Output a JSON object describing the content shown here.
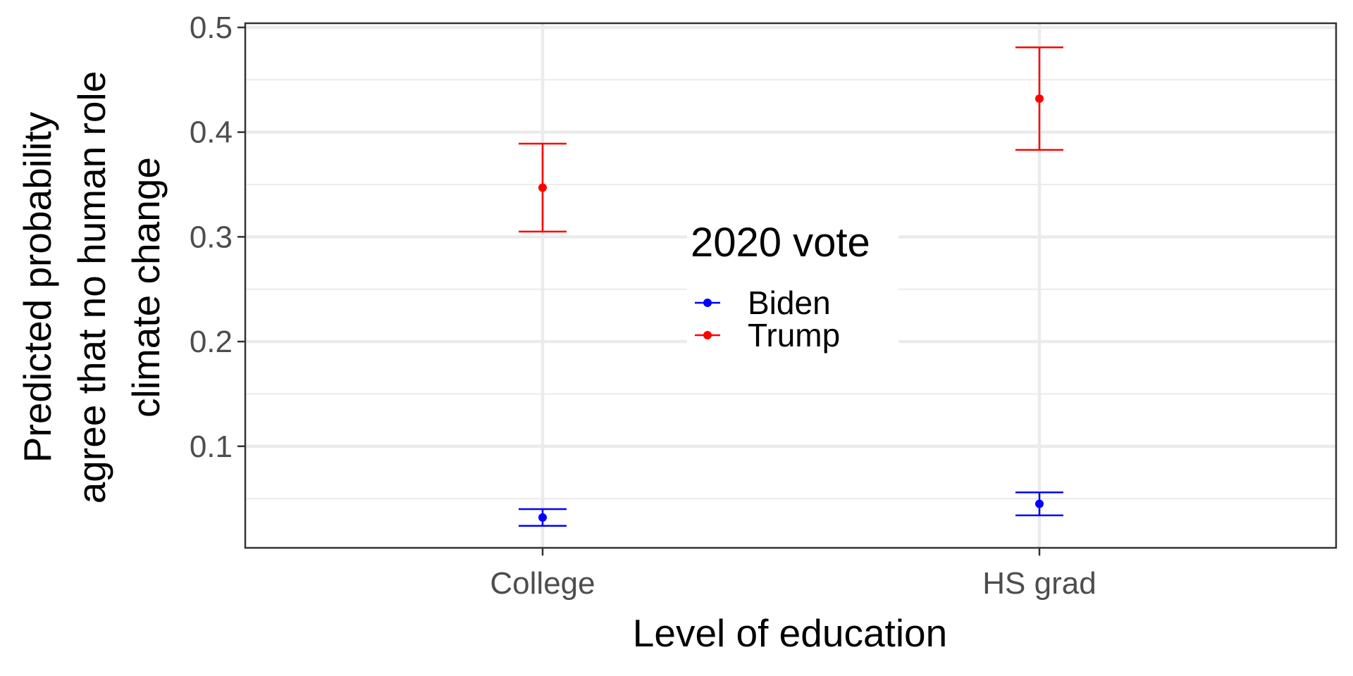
{
  "chart_data": {
    "type": "errorbar",
    "categories": [
      "College",
      "HS grad"
    ],
    "xlabel": "Level of education",
    "ylabel_lines": [
      "Predicted probability",
      "agree that no human role",
      "climate change"
    ],
    "ylim": [
      0.003,
      0.504
    ],
    "yticks": [
      0.1,
      0.2,
      0.3,
      0.4,
      0.5
    ],
    "ytick_labels": [
      "0.1",
      "0.2",
      "0.3",
      "0.4",
      "0.5"
    ],
    "grid": true,
    "legend": {
      "title": "2020 vote",
      "placement": "center",
      "entries": [
        "Biden",
        "Trump"
      ]
    },
    "series": [
      {
        "name": "Biden",
        "color": "#0000ff",
        "points": [
          {
            "x": "College",
            "estimate": 0.032,
            "lower": 0.024,
            "upper": 0.04
          },
          {
            "x": "HS grad",
            "estimate": 0.045,
            "lower": 0.034,
            "upper": 0.056
          }
        ]
      },
      {
        "name": "Trump",
        "color": "#ff0000",
        "points": [
          {
            "x": "College",
            "estimate": 0.347,
            "lower": 0.305,
            "upper": 0.389
          },
          {
            "x": "HS grad",
            "estimate": 0.432,
            "lower": 0.383,
            "upper": 0.481
          }
        ]
      }
    ]
  }
}
